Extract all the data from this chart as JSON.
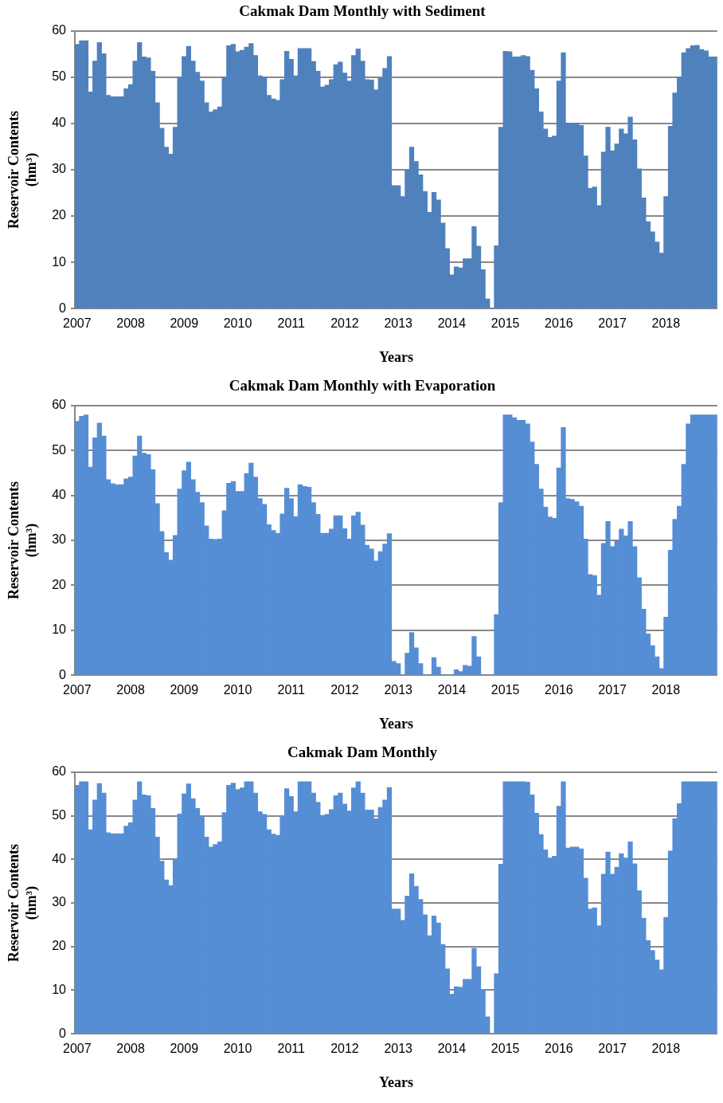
{
  "chart_data": [
    {
      "type": "bar",
      "title": "Cakmak Dam Monthly with Sediment",
      "xlabel": "Years",
      "ylabel": "Reservoir Contents (hm³)",
      "ylim": [
        0,
        60
      ],
      "yticks": [
        0,
        10,
        20,
        30,
        40,
        50,
        60
      ],
      "grid": "y",
      "categories": [
        "2007",
        null,
        null,
        null,
        null,
        null,
        null,
        null,
        null,
        null,
        null,
        null,
        "2008",
        null,
        null,
        null,
        null,
        null,
        null,
        null,
        null,
        null,
        null,
        null,
        "2009",
        null,
        null,
        null,
        null,
        null,
        null,
        null,
        null,
        null,
        null,
        null,
        "2010",
        null,
        null,
        null,
        null,
        null,
        null,
        null,
        null,
        null,
        null,
        null,
        "2011",
        null,
        null,
        null,
        null,
        null,
        null,
        null,
        null,
        null,
        null,
        null,
        "2012",
        null,
        null,
        null,
        null,
        null,
        null,
        null,
        null,
        null,
        null,
        null,
        "2013",
        null,
        null,
        null,
        null,
        null,
        null,
        null,
        null,
        null,
        null,
        null,
        "2014",
        null,
        null,
        null,
        null,
        null,
        null,
        null,
        null,
        null,
        null,
        null,
        "2015",
        null,
        null,
        null,
        null,
        null,
        null,
        null,
        null,
        null,
        null,
        null,
        "2016",
        null,
        null,
        null,
        null,
        null,
        null,
        null,
        null,
        null,
        null,
        null,
        "2017",
        null,
        null,
        null,
        null,
        null,
        null,
        null,
        null,
        null,
        null,
        null,
        "2018",
        null,
        null,
        null,
        null,
        null,
        null,
        null,
        null,
        null,
        null,
        null
      ],
      "series": [
        {
          "color": "#4f81bd",
          "values": [
            57.1,
            57.9,
            57.9,
            46.8,
            53.5,
            57.5,
            55.1,
            46.1,
            45.8,
            45.8,
            45.8,
            47.5,
            48.4,
            53.5,
            57.5,
            54.4,
            54.2,
            51.3,
            44.5,
            39.0,
            34.9,
            33.4,
            39.2,
            50.0,
            54.5,
            56.7,
            53.5,
            51.1,
            49.2,
            44.5,
            42.5,
            43.0,
            43.6,
            50.1,
            56.8,
            57.1,
            55.5,
            55.8,
            56.5,
            57.3,
            54.7,
            50.3,
            50.0,
            46.1,
            45.3,
            45.0,
            49.5,
            55.6,
            53.9,
            50.3,
            56.2,
            56.2,
            56.2,
            53.4,
            51.3,
            47.9,
            48.3,
            49.5,
            52.7,
            53.3,
            50.9,
            49.2,
            54.7,
            56.1,
            53.5,
            49.5,
            49.4,
            47.3,
            49.8,
            51.9,
            54.5,
            26.6,
            26.6,
            24.2,
            29.9,
            34.9,
            31.8,
            28.9,
            25.3,
            20.8,
            25.1,
            23.5,
            18.5,
            13.0,
            7.3,
            9.0,
            8.8,
            10.8,
            10.8,
            17.7,
            13.5,
            8.4,
            2.1,
            0,
            13.6,
            39.2,
            55.6,
            55.5,
            54.4,
            54.4,
            54.7,
            54.5,
            51.5,
            47.5,
            42.5,
            38.8,
            37.0,
            37.3,
            49.2,
            55.3,
            40.1,
            40.1,
            40.1,
            39.6,
            33.0,
            26.0,
            26.3,
            22.3,
            33.8,
            39.2,
            34.1,
            35.6,
            38.8,
            37.8,
            41.4,
            36.5,
            30.2,
            23.9,
            18.8,
            16.6,
            14.4,
            12.0,
            24.2,
            39.4,
            46.6,
            50.1,
            55.3,
            56.2,
            56.8,
            56.9,
            56.0,
            55.7,
            54.4,
            54.4
          ]
        }
      ]
    },
    {
      "type": "bar",
      "title": "Cakmak Dam Monthly with Evaporation",
      "xlabel": "Years",
      "ylabel": "Reservoir Contents (hm³)",
      "ylim": [
        0,
        60
      ],
      "yticks": [
        0,
        10,
        20,
        30,
        40,
        50,
        60
      ],
      "grid": "y",
      "categories": [
        "2007",
        null,
        null,
        null,
        null,
        null,
        null,
        null,
        null,
        null,
        null,
        null,
        "2008",
        null,
        null,
        null,
        null,
        null,
        null,
        null,
        null,
        null,
        null,
        null,
        "2009",
        null,
        null,
        null,
        null,
        null,
        null,
        null,
        null,
        null,
        null,
        null,
        "2010",
        null,
        null,
        null,
        null,
        null,
        null,
        null,
        null,
        null,
        null,
        null,
        "2011",
        null,
        null,
        null,
        null,
        null,
        null,
        null,
        null,
        null,
        null,
        null,
        "2012",
        null,
        null,
        null,
        null,
        null,
        null,
        null,
        null,
        null,
        null,
        null,
        "2013",
        null,
        null,
        null,
        null,
        null,
        null,
        null,
        null,
        null,
        null,
        null,
        "2014",
        null,
        null,
        null,
        null,
        null,
        null,
        null,
        null,
        null,
        null,
        null,
        "2015",
        null,
        null,
        null,
        null,
        null,
        null,
        null,
        null,
        null,
        null,
        null,
        "2016",
        null,
        null,
        null,
        null,
        null,
        null,
        null,
        null,
        null,
        null,
        null,
        "2017",
        null,
        null,
        null,
        null,
        null,
        null,
        null,
        null,
        null,
        null,
        null,
        "2018",
        null,
        null,
        null,
        null,
        null,
        null,
        null,
        null,
        null,
        null,
        null
      ],
      "series": [
        {
          "color": "#558ed5",
          "values": [
            56.5,
            57.6,
            57.9,
            46.3,
            52.8,
            56.1,
            53.2,
            43.5,
            42.6,
            42.4,
            42.4,
            43.7,
            44.1,
            48.8,
            53.2,
            49.4,
            49.1,
            45.7,
            38.2,
            32.0,
            27.3,
            25.6,
            31.1,
            41.4,
            45.5,
            47.4,
            43.5,
            40.7,
            38.4,
            33.2,
            30.3,
            30.2,
            30.3,
            36.6,
            42.7,
            43.1,
            40.9,
            40.9,
            44.9,
            47.2,
            44.1,
            39.3,
            38.0,
            33.5,
            32.2,
            31.6,
            35.9,
            41.6,
            39.3,
            35.3,
            42.4,
            42.0,
            41.8,
            38.4,
            35.8,
            31.6,
            31.6,
            32.5,
            35.5,
            35.5,
            32.6,
            30.3,
            35.5,
            36.3,
            33.4,
            28.9,
            28.1,
            25.4,
            27.5,
            29.2,
            31.5,
            3.1,
            2.6,
            0,
            4.9,
            9.5,
            6.1,
            2.6,
            0,
            0,
            3.9,
            1.8,
            0,
            0,
            0,
            1.2,
            0.8,
            2.2,
            2.0,
            8.6,
            4.1,
            0,
            0,
            0,
            13.5,
            38.4,
            57.9,
            57.9,
            57.3,
            56.7,
            56.7,
            55.9,
            51.9,
            46.9,
            41.4,
            37.4,
            35.2,
            34.9,
            46.1,
            55.1,
            39.3,
            39.1,
            38.6,
            37.6,
            30.3,
            22.4,
            22.2,
            17.8,
            29.3,
            34.2,
            28.6,
            29.8,
            32.5,
            31.0,
            34.2,
            28.6,
            21.7,
            14.7,
            9.2,
            6.6,
            4.1,
            1.5,
            12.9,
            27.8,
            34.7,
            37.6,
            46.9,
            55.9,
            57.9,
            57.9,
            57.9,
            57.9,
            57.9,
            57.9
          ]
        }
      ]
    },
    {
      "type": "bar",
      "title": "Cakmak Dam Monthly",
      "xlabel": "Years",
      "ylabel": "Reservoir Contents (hm³)",
      "ylim": [
        0,
        60
      ],
      "yticks": [
        0,
        10,
        20,
        30,
        40,
        50,
        60
      ],
      "grid": "y",
      "categories": [
        "2007",
        null,
        null,
        null,
        null,
        null,
        null,
        null,
        null,
        null,
        null,
        null,
        "2008",
        null,
        null,
        null,
        null,
        null,
        null,
        null,
        null,
        null,
        null,
        null,
        "2009",
        null,
        null,
        null,
        null,
        null,
        null,
        null,
        null,
        null,
        null,
        null,
        "2010",
        null,
        null,
        null,
        null,
        null,
        null,
        null,
        null,
        null,
        null,
        null,
        "2011",
        null,
        null,
        null,
        null,
        null,
        null,
        null,
        null,
        null,
        null,
        null,
        "2012",
        null,
        null,
        null,
        null,
        null,
        null,
        null,
        null,
        null,
        null,
        null,
        "2013",
        null,
        null,
        null,
        null,
        null,
        null,
        null,
        null,
        null,
        null,
        null,
        "2014",
        null,
        null,
        null,
        null,
        null,
        null,
        null,
        null,
        null,
        null,
        null,
        "2015",
        null,
        null,
        null,
        null,
        null,
        null,
        null,
        null,
        null,
        null,
        null,
        "2016",
        null,
        null,
        null,
        null,
        null,
        null,
        null,
        null,
        null,
        null,
        null,
        "2017",
        null,
        null,
        null,
        null,
        null,
        null,
        null,
        null,
        null,
        null,
        null,
        "2018",
        null,
        null,
        null,
        null,
        null,
        null,
        null,
        null,
        null,
        null,
        null
      ],
      "series": [
        {
          "color": "#558ed5",
          "values": [
            57.0,
            57.8,
            57.8,
            46.8,
            53.6,
            57.4,
            55.2,
            46.1,
            45.9,
            45.9,
            45.9,
            47.6,
            48.4,
            53.6,
            57.8,
            54.8,
            54.6,
            51.7,
            45.1,
            39.6,
            35.3,
            34.0,
            39.9,
            50.4,
            55.0,
            57.3,
            53.9,
            51.7,
            49.7,
            45.1,
            42.8,
            43.4,
            44.0,
            50.7,
            57.0,
            57.5,
            56.0,
            56.4,
            57.8,
            57.8,
            55.2,
            50.9,
            50.3,
            46.8,
            45.8,
            45.5,
            50.0,
            56.2,
            54.4,
            50.9,
            57.8,
            57.8,
            57.8,
            55.2,
            53.1,
            50.1,
            50.3,
            51.4,
            54.6,
            55.2,
            52.7,
            51.1,
            56.4,
            57.8,
            55.2,
            51.3,
            51.3,
            49.3,
            51.9,
            53.6,
            56.5,
            28.6,
            28.6,
            26.0,
            31.6,
            36.7,
            33.8,
            30.8,
            27.3,
            22.5,
            27.0,
            25.4,
            20.5,
            14.9,
            9.1,
            10.8,
            10.7,
            12.5,
            12.5,
            19.6,
            15.4,
            10.1,
            3.9,
            0,
            13.8,
            38.9,
            57.8,
            57.8,
            57.8,
            57.8,
            57.8,
            57.7,
            54.8,
            50.6,
            45.7,
            42.2,
            40.3,
            40.7,
            52.2,
            57.8,
            42.6,
            42.8,
            42.8,
            42.4,
            35.7,
            28.6,
            28.9,
            24.8,
            36.6,
            41.7,
            36.6,
            38.2,
            41.3,
            40.3,
            44.0,
            39.0,
            32.8,
            26.5,
            21.4,
            19.1,
            16.9,
            14.7,
            26.7,
            41.9,
            49.3,
            52.8,
            57.8,
            57.8,
            57.8,
            57.8,
            57.8,
            57.8,
            57.8,
            57.8
          ]
        }
      ]
    }
  ]
}
